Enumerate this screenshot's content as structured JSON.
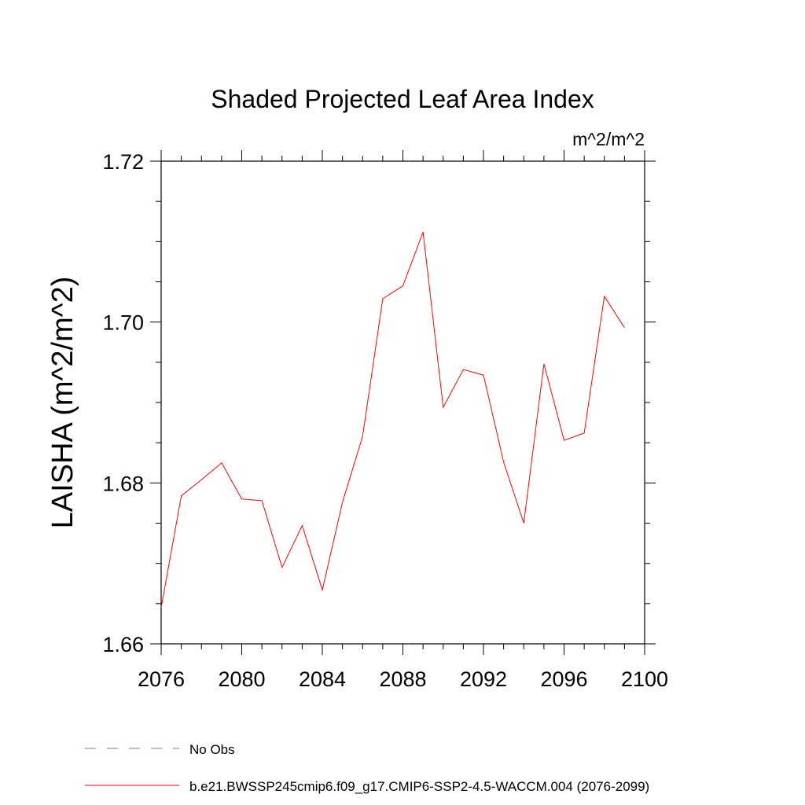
{
  "chart_data": {
    "type": "line",
    "title": "Shaded Projected Leaf Area Index",
    "units": "m^2/m^2",
    "xlabel": "",
    "ylabel": "LAISHA  (m^2/m^2)",
    "xlim": [
      2076,
      2100
    ],
    "ylim": [
      1.66,
      1.72
    ],
    "x_ticks": [
      2076,
      2080,
      2084,
      2088,
      2092,
      2096,
      2100
    ],
    "x_tick_labels": [
      "2076",
      "2080",
      "2084",
      "2088",
      "2092",
      "2096",
      "2100"
    ],
    "y_ticks": [
      1.66,
      1.68,
      1.7,
      1.72
    ],
    "y_tick_labels": [
      "1.66",
      "1.68",
      "1.70",
      "1.72"
    ],
    "grid": false,
    "legend_placement": "bottom",
    "series": [
      {
        "name": "b.e21.BWSSP245cmip6.f09_g17.CMIP6-SSP2-4.5-WACCM.004 (2076-2099)",
        "color": "#ff0000",
        "style": "solid",
        "x": [
          2076,
          2077,
          2078,
          2079,
          2080,
          2081,
          2082,
          2083,
          2084,
          2085,
          2086,
          2087,
          2088,
          2089,
          2090,
          2091,
          2092,
          2093,
          2094,
          2095,
          2096,
          2097,
          2098,
          2099
        ],
        "y": [
          1.6645,
          1.6784,
          1.6804,
          1.6825,
          1.678,
          1.6778,
          1.6695,
          1.6747,
          1.6667,
          1.6776,
          1.6858,
          1.7029,
          1.7045,
          1.7112,
          1.6894,
          1.6941,
          1.6934,
          1.6826,
          1.675,
          1.6948,
          1.6853,
          1.6862,
          1.7032,
          1.6993
        ]
      }
    ],
    "legend": [
      {
        "label": "No Obs",
        "color": "#7b6fc4",
        "style": "dashed"
      },
      {
        "label": "b.e21.BWSSP245cmip6.f09_g17.CMIP6-SSP2-4.5-WACCM.004 (2076-2099)",
        "color": "#ff0000",
        "style": "solid"
      }
    ]
  }
}
